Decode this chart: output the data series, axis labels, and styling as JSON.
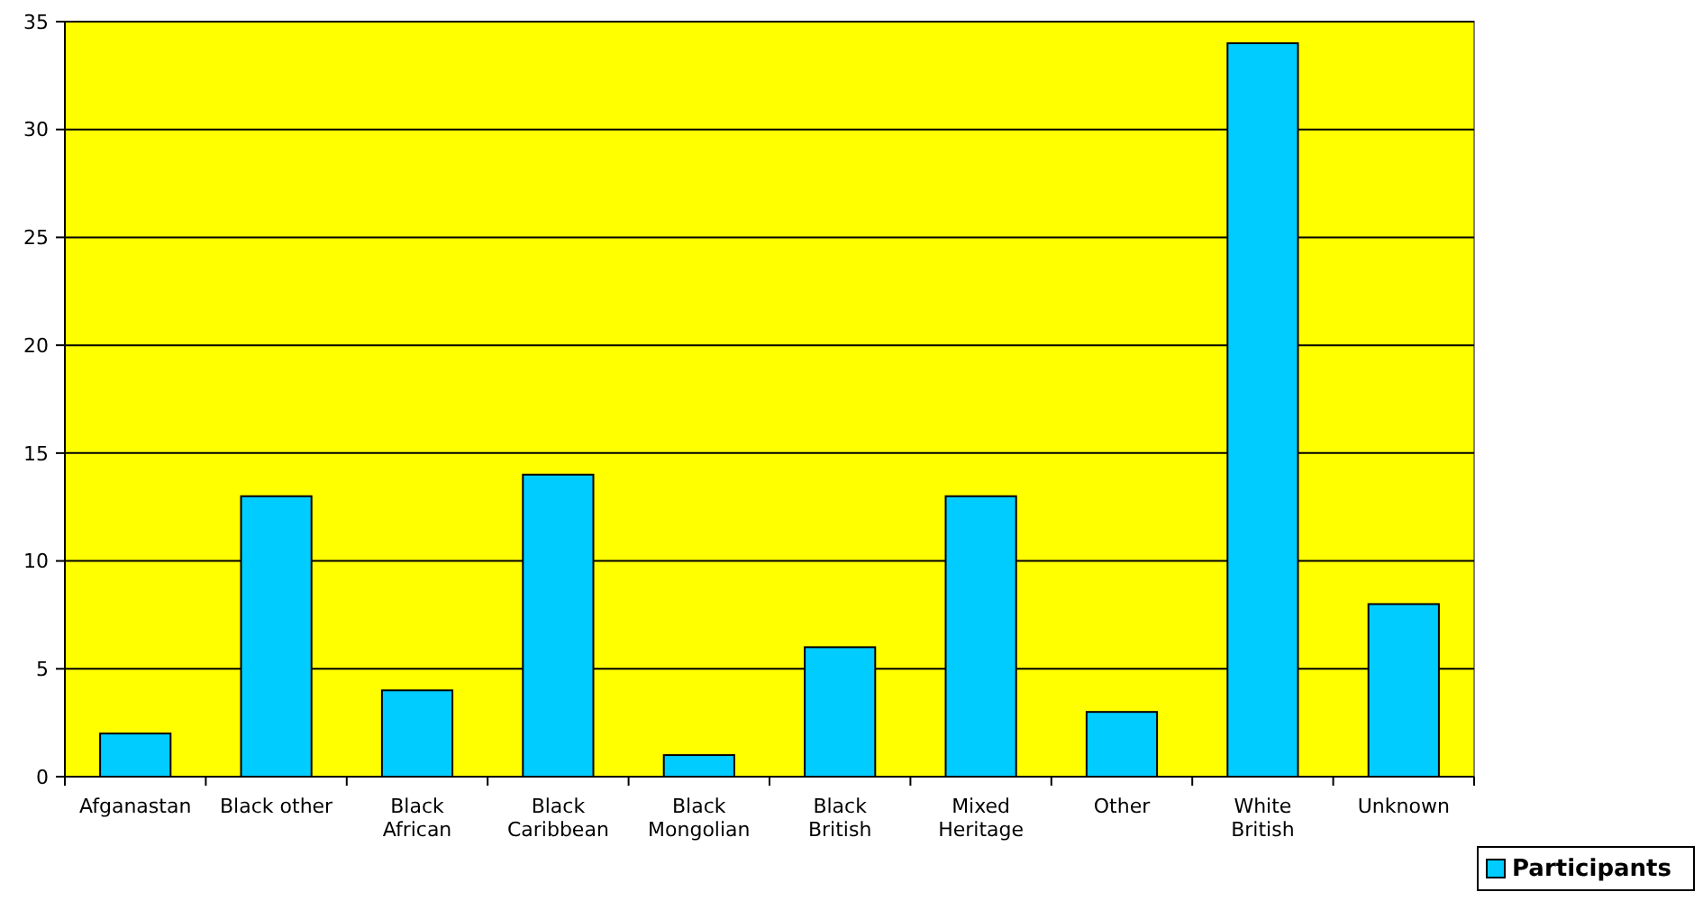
{
  "chart_data": {
    "type": "bar",
    "categories": [
      "Afganastan",
      "Black other",
      "Black African",
      "Black Caribbean",
      "Black Mongolian",
      "Black British",
      "Mixed Heritage",
      "Other",
      "White British",
      "Unknown"
    ],
    "series": [
      {
        "name": "Participants",
        "color": "#00ccff",
        "values": [
          2,
          13,
          4,
          14,
          1,
          6,
          13,
          3,
          34,
          8
        ]
      }
    ],
    "ylim": [
      0,
      35
    ],
    "yticks": [
      0,
      5,
      10,
      15,
      20,
      25,
      30,
      35
    ],
    "grid": "y",
    "legend": "bottom right"
  }
}
